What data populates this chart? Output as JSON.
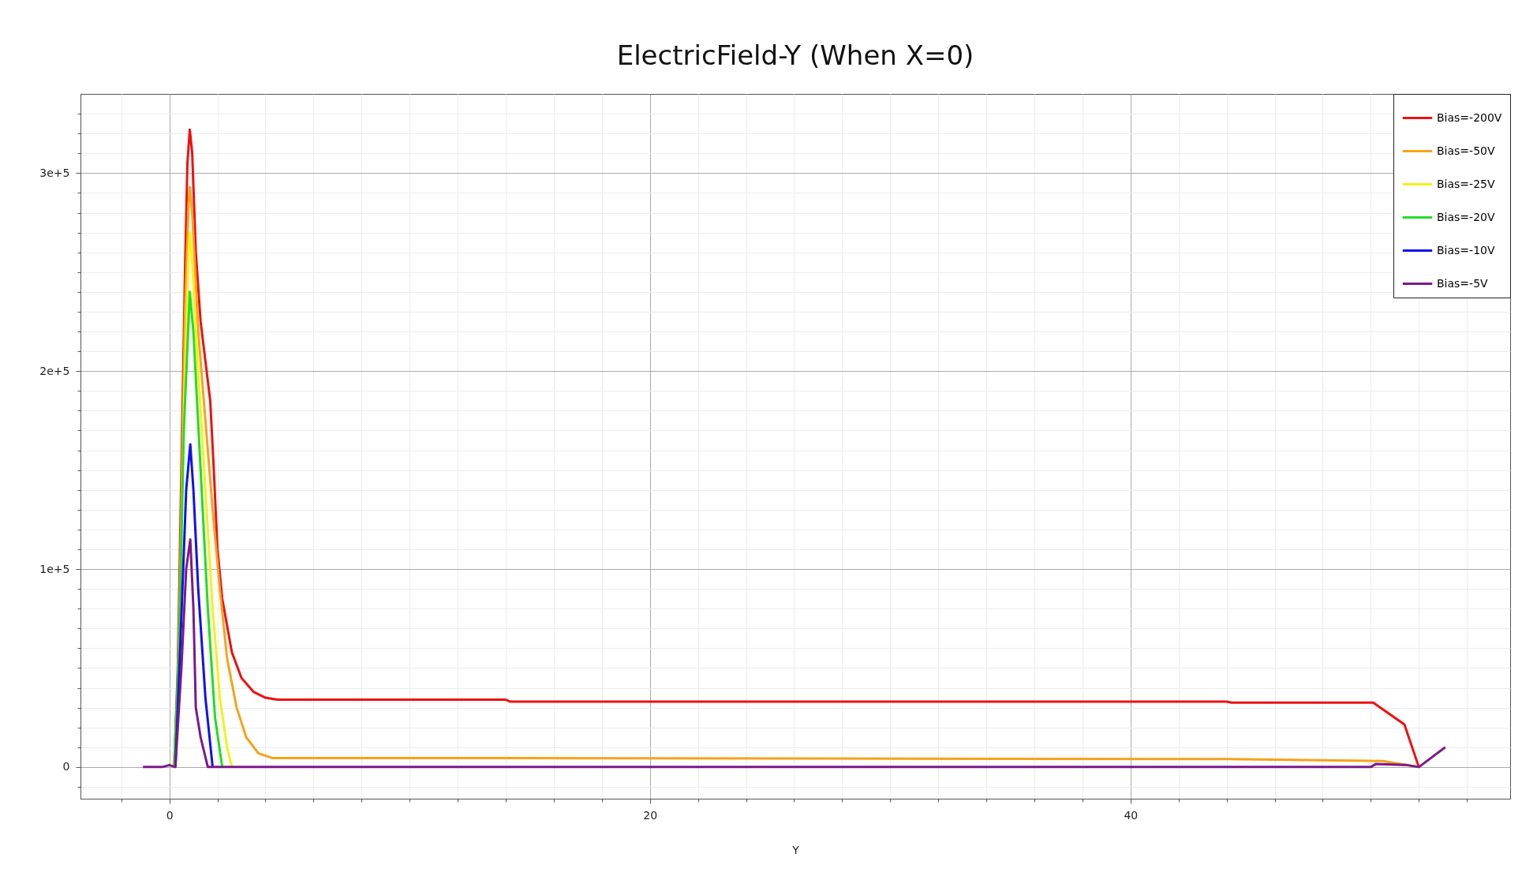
{
  "chart_data": {
    "type": "line",
    "title": "ElectricField-Y (When X=0)",
    "xlabel": "Y",
    "xlim": [
      -3.7,
      55.8
    ],
    "ylim": [
      -16000,
      340000
    ],
    "xticks": [
      {
        "value": -2,
        "label": null
      },
      0,
      {
        "value": 2,
        "label": null
      },
      {
        "value": 4,
        "label": null
      },
      {
        "value": 6,
        "label": null
      },
      {
        "value": 8,
        "label": null
      },
      {
        "value": 10,
        "label": null
      },
      {
        "value": 12,
        "label": null
      },
      {
        "value": 14,
        "label": null
      },
      {
        "value": 16,
        "label": null
      },
      {
        "value": 18,
        "label": null
      },
      20,
      {
        "value": 22,
        "label": null
      },
      {
        "value": 24,
        "label": null
      },
      {
        "value": 26,
        "label": null
      },
      {
        "value": 28,
        "label": null
      },
      {
        "value": 30,
        "label": null
      },
      {
        "value": 32,
        "label": null
      },
      {
        "value": 34,
        "label": null
      },
      {
        "value": 36,
        "label": null
      },
      {
        "value": 38,
        "label": null
      },
      40,
      {
        "value": 42,
        "label": null
      },
      {
        "value": 44,
        "label": null
      },
      {
        "value": 46,
        "label": null
      },
      {
        "value": 48,
        "label": null
      },
      {
        "value": 50,
        "label": null
      },
      {
        "value": 52,
        "label": null
      },
      {
        "value": 54,
        "label": null
      }
    ],
    "yticks": [
      {
        "value": -10000,
        "label": null
      },
      0,
      {
        "value": 10000,
        "label": null
      },
      {
        "value": 20000,
        "label": null
      },
      {
        "value": 30000,
        "label": null
      },
      {
        "value": 40000,
        "label": null
      },
      {
        "value": 50000,
        "label": null
      },
      {
        "value": 60000,
        "label": null
      },
      {
        "value": 70000,
        "label": null
      },
      {
        "value": 80000,
        "label": null
      },
      {
        "value": 90000,
        "label": null
      },
      {
        "value": 100000,
        "label": "1e+5"
      },
      {
        "value": 110000,
        "label": null
      },
      {
        "value": 120000,
        "label": null
      },
      {
        "value": 130000,
        "label": null
      },
      {
        "value": 140000,
        "label": null
      },
      {
        "value": 150000,
        "label": null
      },
      {
        "value": 160000,
        "label": null
      },
      {
        "value": 170000,
        "label": null
      },
      {
        "value": 180000,
        "label": null
      },
      {
        "value": 190000,
        "label": null
      },
      {
        "value": 200000,
        "label": "2e+5"
      },
      {
        "value": 210000,
        "label": null
      },
      {
        "value": 220000,
        "label": null
      },
      {
        "value": 230000,
        "label": null
      },
      {
        "value": 240000,
        "label": null
      },
      {
        "value": 250000,
        "label": null
      },
      {
        "value": 260000,
        "label": null
      },
      {
        "value": 270000,
        "label": null
      },
      {
        "value": 280000,
        "label": null
      },
      {
        "value": 290000,
        "label": null
      },
      {
        "value": 300000,
        "label": "3e+5"
      },
      {
        "value": 310000,
        "label": null
      },
      {
        "value": 320000,
        "label": null
      },
      {
        "value": 330000,
        "label": null
      }
    ],
    "grid": true,
    "legend": "top right",
    "marker": "none",
    "line_style": "solid",
    "series": [
      {
        "name": "Bias=-200V",
        "color": "#ee1111",
        "x": [
          0.2,
          0.35,
          0.5,
          0.65,
          0.75,
          0.85,
          0.95,
          1.1,
          1.3,
          1.5,
          1.7,
          1.85,
          2.0,
          2.2,
          2.6,
          3.0,
          3.5,
          4.0,
          4.5,
          14,
          14.2,
          44,
          44.2,
          50.1,
          51.4,
          52.0
        ],
        "values": [
          0,
          50000,
          150000,
          250000,
          305000,
          322000,
          310000,
          260000,
          225000,
          205000,
          185000,
          150000,
          110000,
          85000,
          58000,
          45000,
          38000,
          35000,
          34000,
          34000,
          33000,
          33000,
          32500,
          32500,
          21500,
          0
        ]
      },
      {
        "name": "Bias=-50V",
        "color": "#f5a31a",
        "x": [
          0.2,
          0.35,
          0.5,
          0.65,
          0.8,
          0.85,
          0.95,
          1.2,
          1.5,
          1.8,
          2.1,
          2.4,
          2.8,
          3.2,
          3.7,
          4.3,
          14,
          44,
          50.5,
          52.0
        ],
        "values": [
          0,
          40000,
          130000,
          230000,
          285000,
          293000,
          280000,
          220000,
          175000,
          130000,
          90000,
          55000,
          30000,
          15000,
          7000,
          4500,
          4500,
          4000,
          3000,
          0
        ]
      },
      {
        "name": "Bias=-25V",
        "color": "#f2f21a",
        "x": [
          0.2,
          0.4,
          0.6,
          0.8,
          0.85,
          0.95,
          1.2,
          1.5,
          1.8,
          2.1,
          2.4,
          2.6
        ],
        "values": [
          0,
          50000,
          180000,
          260000,
          270000,
          255000,
          200000,
          140000,
          80000,
          35000,
          10000,
          0
        ]
      },
      {
        "name": "Bias=-20V",
        "color": "#22dd22",
        "x": [
          0.2,
          0.4,
          0.6,
          0.85,
          1.0,
          1.3,
          1.6,
          1.9,
          2.2
        ],
        "values": [
          0,
          60000,
          170000,
          240000,
          220000,
          150000,
          80000,
          25000,
          0
        ]
      },
      {
        "name": "Bias=-10V",
        "color": "#1111ee",
        "x": [
          0.25,
          0.45,
          0.7,
          0.87,
          1.0,
          1.2,
          1.5,
          1.8
        ],
        "values": [
          0,
          60000,
          140000,
          163000,
          140000,
          90000,
          35000,
          0
        ]
      },
      {
        "name": "Bias=-5V",
        "color": "#7a1a8a",
        "x": [
          -1.1,
          -0.3,
          0,
          0.25,
          0.5,
          0.7,
          0.87,
          1.0,
          1.1,
          1.3,
          1.6,
          2.5,
          4.5,
          50,
          50.2,
          51.5,
          52.0,
          53.1
        ],
        "values": [
          0,
          0,
          1000,
          0,
          50000,
          100000,
          115000,
          80000,
          30000,
          15000,
          0,
          0,
          0,
          0,
          1500,
          1000,
          0,
          10000
        ]
      }
    ]
  }
}
